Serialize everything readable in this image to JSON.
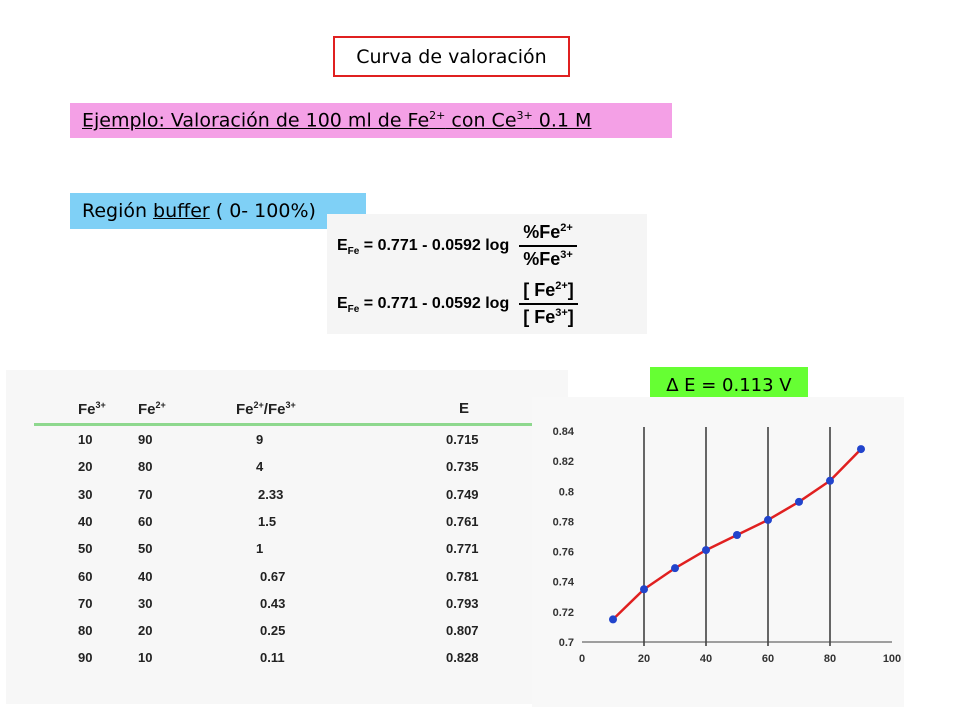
{
  "title": "Curva de valoración",
  "example": {
    "prefix": "Ejemplo: Valoración de 100 ml de Fe",
    "sup1": "2+",
    "mid": " con Ce",
    "sup2": "3+",
    "suffix": " 0.1 M"
  },
  "buffer": {
    "prefix": "Región",
    "underlined": "buffer",
    "suffix": "( 0- 100%)"
  },
  "equations": {
    "lhs": "E",
    "lhs_sub": "Fe",
    "rhs": "= 0.771 - 0.0592 log",
    "eq1_num": "%Fe",
    "eq1_num_sup": "2+",
    "eq1_den": "%Fe",
    "eq1_den_sup": "3+",
    "eq2_num": "[ Fe",
    "eq2_num_sup": "2+",
    "eq2_num_close": "]",
    "eq2_den": "[ Fe",
    "eq2_den_sup": "3+",
    "eq2_den_close": "]"
  },
  "table": {
    "headers": [
      "Fe",
      "Fe",
      "Fe",
      "/Fe",
      "E"
    ],
    "header_sups": [
      "3+",
      "2+",
      "2+",
      "3+"
    ],
    "rows": [
      [
        "10",
        "90",
        "9",
        "0.715"
      ],
      [
        "20",
        "80",
        "4",
        "0.735"
      ],
      [
        "30",
        "70",
        "2.33",
        "0.749"
      ],
      [
        "40",
        "60",
        "1.5",
        "0.761"
      ],
      [
        "50",
        "50",
        "1",
        "0.771"
      ],
      [
        "60",
        "40",
        "0.67",
        "0.781"
      ],
      [
        "70",
        "30",
        "0.43",
        "0.793"
      ],
      [
        "80",
        "20",
        "0.25",
        "0.807"
      ],
      [
        "90",
        "10",
        "0.11",
        "0.828"
      ]
    ]
  },
  "delta": "∆ E = 0.113 V",
  "chart_data": {
    "type": "line",
    "x": [
      10,
      20,
      30,
      40,
      50,
      60,
      70,
      80,
      90
    ],
    "y": [
      0.715,
      0.735,
      0.749,
      0.761,
      0.771,
      0.781,
      0.793,
      0.807,
      0.828
    ],
    "xlim": [
      0,
      100
    ],
    "ylim": [
      0.7,
      0.84
    ],
    "xticks": [
      "0",
      "20",
      "40",
      "60",
      "80",
      "100"
    ],
    "yticks": [
      "0.7",
      "0.72",
      "0.74",
      "0.76",
      "0.78",
      "0.8",
      "0.82",
      "0.84"
    ],
    "grid": "vertical",
    "line_color": "#e02020",
    "marker_color": "#2244cc",
    "title": "",
    "xlabel": "",
    "ylabel": ""
  }
}
